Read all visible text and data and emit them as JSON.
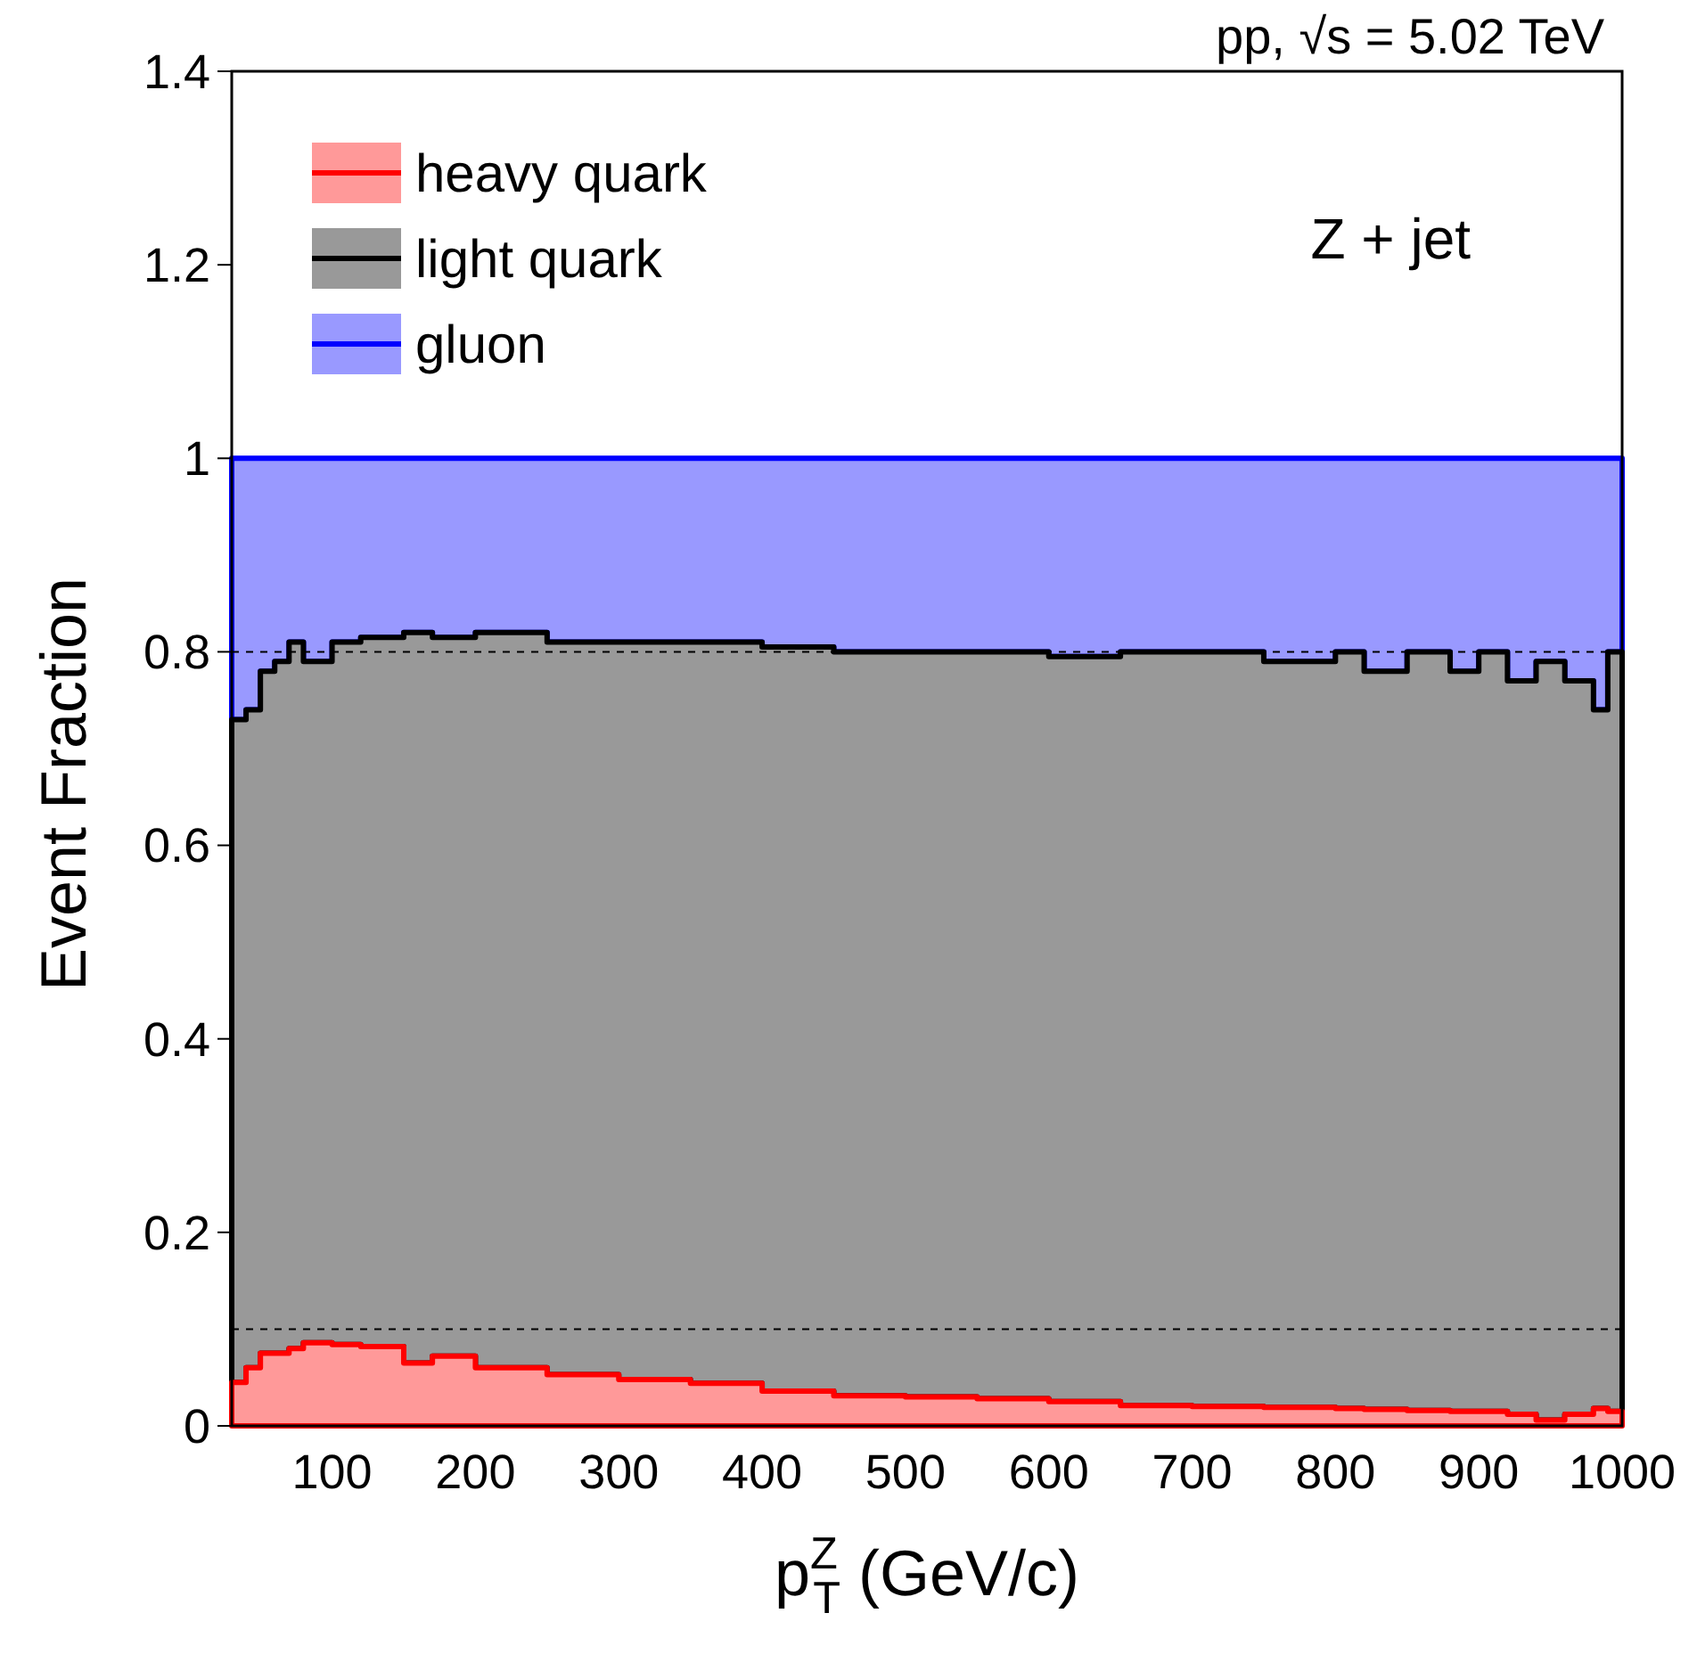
{
  "chart_data": {
    "type": "area",
    "stacked": true,
    "xlabel": "p$^{Z}$$_{T}$ (GeV/c)",
    "ylabel": "Event Fraction",
    "x": [
      30,
      40,
      50,
      60,
      70,
      80,
      100,
      120,
      150,
      170,
      200,
      250,
      300,
      350,
      400,
      450,
      500,
      550,
      600,
      650,
      700,
      750,
      800,
      820,
      850,
      880,
      900,
      920,
      940,
      960,
      980,
      990,
      1000
    ],
    "series": [
      {
        "name": "heavy quark",
        "color": "#ff9999",
        "values": [
          0.045,
          0.06,
          0.075,
          0.075,
          0.08,
          0.086,
          0.084,
          0.082,
          0.065,
          0.072,
          0.06,
          0.053,
          0.048,
          0.044,
          0.036,
          0.031,
          0.03,
          0.028,
          0.025,
          0.021,
          0.02,
          0.019,
          0.018,
          0.017,
          0.016,
          0.015,
          0.015,
          0.012,
          0.006,
          0.012,
          0.018,
          0.015,
          0.015
        ]
      },
      {
        "name": "light quark",
        "color": "#999999",
        "values": [
          0.685,
          0.68,
          0.705,
          0.715,
          0.73,
          0.704,
          0.726,
          0.733,
          0.755,
          0.743,
          0.76,
          0.757,
          0.762,
          0.766,
          0.769,
          0.769,
          0.77,
          0.772,
          0.77,
          0.779,
          0.78,
          0.771,
          0.782,
          0.763,
          0.784,
          0.765,
          0.785,
          0.758,
          0.784,
          0.758,
          0.722,
          0.785,
          0.785
        ]
      },
      {
        "name": "gluon",
        "color": "#9999ff",
        "values": [
          0.27,
          0.26,
          0.22,
          0.21,
          0.19,
          0.21,
          0.19,
          0.185,
          0.18,
          0.185,
          0.18,
          0.19,
          0.19,
          0.19,
          0.195,
          0.2,
          0.2,
          0.2,
          0.205,
          0.2,
          0.2,
          0.21,
          0.2,
          0.22,
          0.2,
          0.22,
          0.2,
          0.23,
          0.21,
          0.23,
          0.26,
          0.2,
          0.2
        ]
      }
    ],
    "xlim": [
      30,
      1000
    ],
    "xticks": [
      100,
      200,
      300,
      400,
      500,
      600,
      700,
      800,
      900,
      1000
    ],
    "ylim": [
      0,
      1.4
    ],
    "yticks": [
      0,
      0.2,
      0.4,
      0.6,
      0.8,
      1,
      1.2,
      1.4
    ],
    "ref_lines": [
      {
        "axis": "y",
        "value": 0.8,
        "color": "#000000",
        "line_style": "dashed"
      },
      {
        "axis": "y",
        "value": 0.1,
        "color": "#000000",
        "line_style": "dashed"
      }
    ],
    "annotations": [
      "pp, √s = 5.02 TeV",
      "Z + jet"
    ],
    "legend": "top left",
    "grid": false
  }
}
